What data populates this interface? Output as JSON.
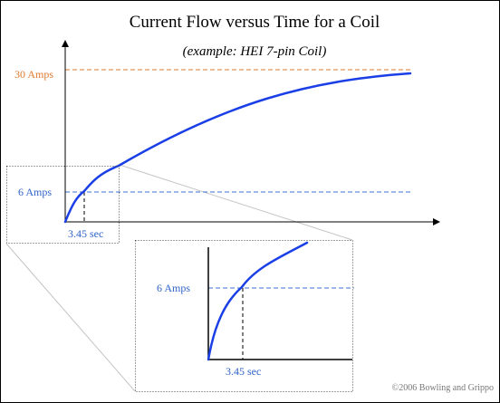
{
  "diagram": {
    "title": "Current Flow versus Time for a Coil",
    "subtitle": "(example: HEI 7-pin Coil)",
    "main": {
      "max_current_label": "30 Amps",
      "point_current_label": "6 Amps",
      "point_time_label": "3.45 sec"
    },
    "inset": {
      "point_current_label": "6 Amps",
      "point_time_label": "3.45 sec"
    },
    "copyright": "©2006 Bowling and Grippo"
  },
  "colors": {
    "curve": "#1a3fe6",
    "reference_line": "#3b6fd1",
    "max_line": "#e07a2e",
    "label_blue": "#2f63c8",
    "label_orange": "#e07a2e",
    "zoom_guides": "#bdbdbd"
  },
  "chart_data": {
    "type": "line",
    "title": "Current Flow versus Time for a Coil",
    "subtitle": "(example: HEI 7-pin Coil)",
    "xlabel": "",
    "ylabel": "",
    "reference_lines": [
      {
        "axis": "y",
        "value": 30,
        "label": "30 Amps"
      },
      {
        "axis": "y",
        "value": 6,
        "label": "6 Amps"
      },
      {
        "axis": "x",
        "value": 3.45,
        "label": "3.45 sec"
      }
    ],
    "series": [
      {
        "x": [
          0,
          1,
          2,
          3.45
        ],
        "y": [
          0,
          2.6,
          4.2,
          6
        ]
      }
    ]
  }
}
